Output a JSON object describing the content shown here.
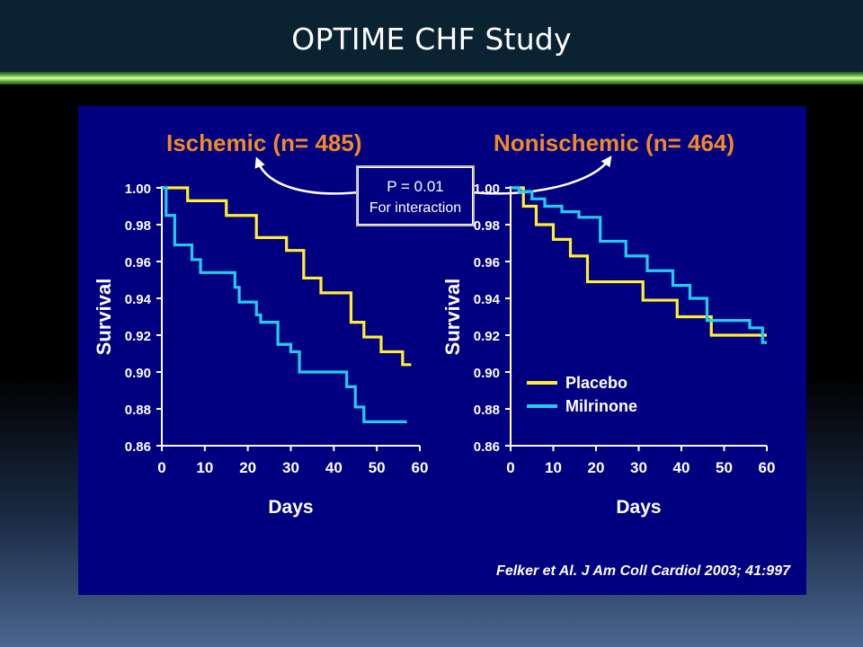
{
  "slide": {
    "title": "OPTIME CHF Study"
  },
  "interaction_box": {
    "line1": "P = 0.01",
    "line2": "For interaction"
  },
  "citation": "Felker et Al. J Am Coll Cardiol 2003; 41:997",
  "colors": {
    "placebo": "#ffee33",
    "milrinone": "#22ccee",
    "panel": "#000080",
    "subtitle": "#f08a24"
  },
  "chart_data": [
    {
      "type": "line",
      "title": "Ischemic (n= 485)",
      "xlabel": "Days",
      "ylabel": "Survival",
      "xlim": [
        0,
        60
      ],
      "ylim": [
        0.86,
        1.0
      ],
      "xticks": [
        "0",
        "10",
        "20",
        "30",
        "40",
        "50",
        "60"
      ],
      "yticks": [
        "0.86",
        "0.88",
        "0.90",
        "0.92",
        "0.94",
        "0.96",
        "0.98",
        "1.00"
      ],
      "grid": false,
      "step": true,
      "series": [
        {
          "name": "Placebo",
          "x": [
            0,
            6,
            15,
            22,
            29,
            33,
            37,
            44,
            47,
            51,
            56,
            58
          ],
          "y": [
            1.0,
            0.993,
            0.985,
            0.973,
            0.966,
            0.951,
            0.943,
            0.927,
            0.919,
            0.911,
            0.904,
            0.904
          ]
        },
        {
          "name": "Milrinone",
          "x": [
            0,
            1,
            3,
            7,
            9,
            17,
            18,
            22,
            23,
            27,
            30,
            32,
            43,
            45,
            47,
            57
          ],
          "y": [
            1.0,
            0.985,
            0.969,
            0.961,
            0.954,
            0.946,
            0.938,
            0.931,
            0.927,
            0.915,
            0.911,
            0.9,
            0.892,
            0.881,
            0.873,
            0.873
          ]
        }
      ]
    },
    {
      "type": "line",
      "title": "Nonischemic (n= 464)",
      "xlabel": "Days",
      "ylabel": "Survival",
      "xlim": [
        0,
        60
      ],
      "ylim": [
        0.86,
        1.0
      ],
      "xticks": [
        "0",
        "10",
        "20",
        "30",
        "40",
        "50",
        "60"
      ],
      "yticks": [
        "0.86",
        "0.88",
        "0.90",
        "0.92",
        "0.94",
        "0.96",
        "0.98",
        "1.00"
      ],
      "grid": false,
      "step": true,
      "legend": {
        "placement": "lower-left",
        "entries": [
          "Placebo",
          "Milrinone"
        ]
      },
      "series": [
        {
          "name": "Placebo",
          "x": [
            0,
            3,
            6,
            10,
            14,
            18,
            31,
            39,
            47,
            60
          ],
          "y": [
            1.0,
            0.99,
            0.98,
            0.972,
            0.963,
            0.949,
            0.939,
            0.93,
            0.92,
            0.92
          ]
        },
        {
          "name": "Milrinone",
          "x": [
            0,
            2,
            5,
            8,
            12,
            16,
            21,
            27,
            32,
            38,
            42,
            46,
            56,
            59,
            60
          ],
          "y": [
            1.0,
            0.998,
            0.994,
            0.99,
            0.987,
            0.984,
            0.971,
            0.963,
            0.955,
            0.947,
            0.94,
            0.928,
            0.924,
            0.916,
            0.916
          ]
        }
      ]
    }
  ]
}
